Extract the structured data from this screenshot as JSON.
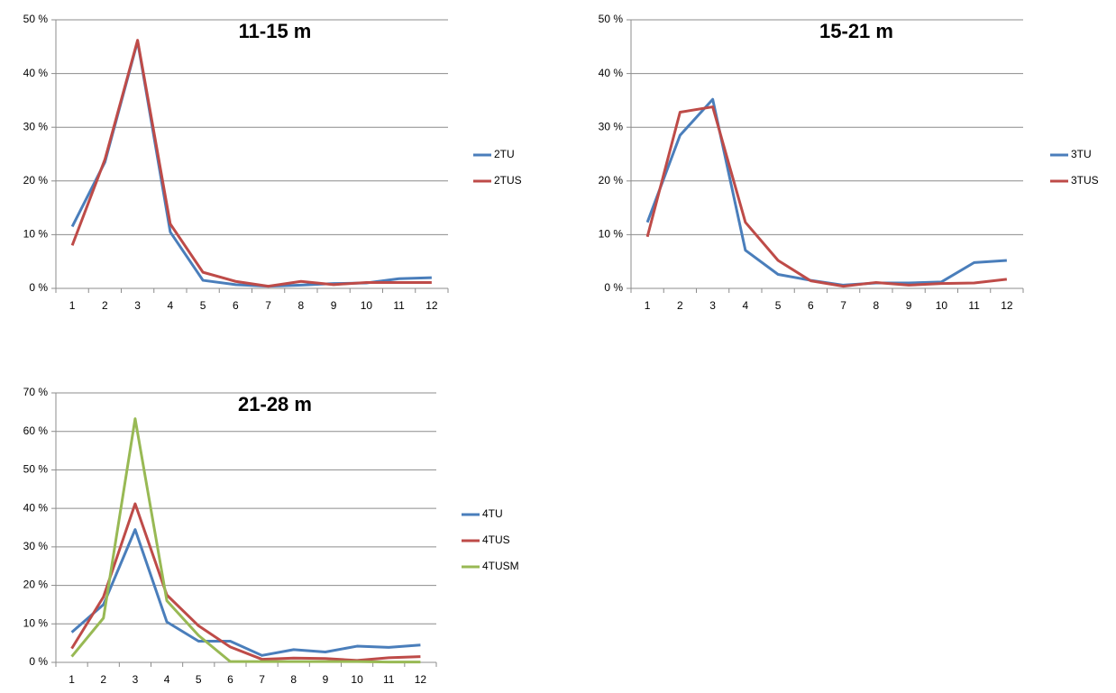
{
  "chart_data": [
    {
      "type": "line",
      "title": "11-15 m",
      "categories": [
        "1",
        "2",
        "3",
        "4",
        "5",
        "6",
        "7",
        "8",
        "9",
        "10",
        "11",
        "12"
      ],
      "series": [
        {
          "name": "2TU",
          "color": "#4a7ebb",
          "values": [
            11.5,
            23.5,
            46,
            10.5,
            1.5,
            0.7,
            0.4,
            0.6,
            0.9,
            1.0,
            1.8,
            2.0
          ]
        },
        {
          "name": "2TUS",
          "color": "#be4b48",
          "values": [
            8,
            24,
            46.2,
            12,
            3,
            1.3,
            0.4,
            1.3,
            0.7,
            1.1,
            1.1,
            1.1
          ]
        }
      ],
      "ylim": [
        0,
        50
      ],
      "yticks": [
        {
          "value": 0,
          "label": "0 %"
        },
        {
          "value": 10,
          "label": "10 %"
        },
        {
          "value": 20,
          "label": "20 %"
        },
        {
          "value": 30,
          "label": "30 %"
        },
        {
          "value": 40,
          "label": "40 %"
        },
        {
          "value": 50,
          "label": "50 %"
        }
      ],
      "grid": true,
      "legend": "right"
    },
    {
      "type": "line",
      "title": "15-21 m",
      "categories": [
        "1",
        "2",
        "3",
        "4",
        "5",
        "6",
        "7",
        "8",
        "9",
        "10",
        "11",
        "12"
      ],
      "series": [
        {
          "name": "3TU",
          "color": "#4a7ebb",
          "values": [
            12.3,
            28.5,
            35.2,
            7.1,
            2.6,
            1.5,
            0.6,
            1.0,
            1.0,
            1.2,
            4.8,
            5.2
          ]
        },
        {
          "name": "3TUS",
          "color": "#be4b48",
          "values": [
            9.6,
            32.8,
            33.8,
            12.3,
            5.2,
            1.4,
            0.4,
            1.1,
            0.6,
            0.9,
            1.0,
            1.7
          ]
        }
      ],
      "ylim": [
        0,
        50
      ],
      "yticks": [
        {
          "value": 0,
          "label": "0 %"
        },
        {
          "value": 10,
          "label": "10 %"
        },
        {
          "value": 20,
          "label": "20 %"
        },
        {
          "value": 30,
          "label": "30 %"
        },
        {
          "value": 40,
          "label": "40 %"
        },
        {
          "value": 50,
          "label": "50 %"
        }
      ],
      "grid": true,
      "legend": "right"
    },
    {
      "type": "line",
      "title": "21-28 m",
      "categories": [
        "1",
        "2",
        "3",
        "4",
        "5",
        "6",
        "7",
        "8",
        "9",
        "10",
        "11",
        "12"
      ],
      "series": [
        {
          "name": "4TU",
          "color": "#4a7ebb",
          "values": [
            7.8,
            15,
            34.5,
            10.5,
            5.5,
            5.5,
            1.8,
            3.3,
            2.7,
            4.2,
            3.9,
            4.5
          ]
        },
        {
          "name": "4TUS",
          "color": "#be4b48",
          "values": [
            3.6,
            17,
            41.2,
            17.5,
            9.5,
            4,
            0.8,
            1.1,
            1.0,
            0.5,
            1.2,
            1.5
          ]
        },
        {
          "name": "4TUSM",
          "color": "#98b954",
          "values": [
            1.5,
            11.5,
            63.3,
            16,
            7,
            0.2,
            0.2,
            0.2,
            0.2,
            0.2,
            0.1,
            0.1
          ]
        }
      ],
      "ylim": [
        0,
        70
      ],
      "yticks": [
        {
          "value": 0,
          "label": "0 %"
        },
        {
          "value": 10,
          "label": "10 %"
        },
        {
          "value": 20,
          "label": "20 %"
        },
        {
          "value": 30,
          "label": "30 %"
        },
        {
          "value": 40,
          "label": "40 %"
        },
        {
          "value": 50,
          "label": "50 %"
        },
        {
          "value": 60,
          "label": "60 %"
        },
        {
          "value": 70,
          "label": "70 %"
        }
      ],
      "grid": true,
      "legend": "right"
    }
  ]
}
